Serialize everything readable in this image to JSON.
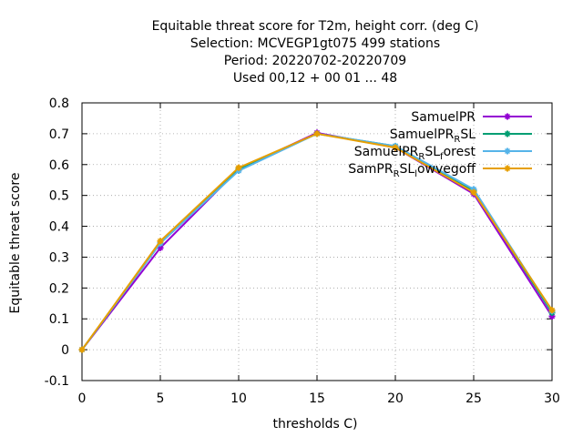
{
  "chart_data": {
    "type": "line",
    "title_lines": [
      "Equitable threat score  for T2m, height corr. (deg C)",
      "Selection: MCVEGP1gt075    499 stations",
      "Period: 20220702-20220709",
      "Used  00,12  + 00 01 ... 48"
    ],
    "xlabel": "thresholds C)",
    "ylabel": "Equitable threat score",
    "x_ticks": [
      "0",
      "5",
      "10",
      "15",
      "20",
      "25",
      "30"
    ],
    "y_ticks": [
      "-0.1",
      "0",
      "0.1",
      "0.2",
      "0.3",
      "0.4",
      "0.5",
      "0.6",
      "0.7",
      "0.8"
    ],
    "xlim": [
      0,
      30
    ],
    "ylim": [
      -0.1,
      0.8
    ],
    "grid": true,
    "legend_position": "top-right",
    "x": [
      0,
      5,
      10,
      15,
      20,
      25,
      30
    ],
    "series": [
      {
        "legend_parts": [
          [
            "SamuelPR",
            "n"
          ]
        ],
        "color": "#9400d3",
        "values": [
          0.0,
          0.33,
          0.585,
          0.703,
          0.655,
          0.505,
          0.108
        ]
      },
      {
        "legend_parts": [
          [
            "SamuelPR",
            "n"
          ],
          [
            "R",
            "sub"
          ],
          [
            "SL",
            "n"
          ]
        ],
        "color": "#009e73",
        "values": [
          0.0,
          0.345,
          0.585,
          0.7,
          0.66,
          0.515,
          0.12
        ]
      },
      {
        "legend_parts": [
          [
            "SamuelPR",
            "n"
          ],
          [
            "R",
            "sub"
          ],
          [
            "SL",
            "n"
          ],
          [
            "f",
            "sub"
          ],
          [
            "orest",
            "n"
          ]
        ],
        "color": "#56b4e9",
        "values": [
          0.0,
          0.345,
          0.58,
          0.7,
          0.66,
          0.52,
          0.125
        ]
      },
      {
        "legend_parts": [
          [
            "SamPR",
            "n"
          ],
          [
            "R",
            "sub"
          ],
          [
            "SL",
            "n"
          ],
          [
            "l",
            "sub"
          ],
          [
            "owvegoff",
            "n"
          ]
        ],
        "color": "#e69f00",
        "values": [
          0.0,
          0.352,
          0.59,
          0.7,
          0.655,
          0.51,
          0.128
        ]
      }
    ]
  }
}
